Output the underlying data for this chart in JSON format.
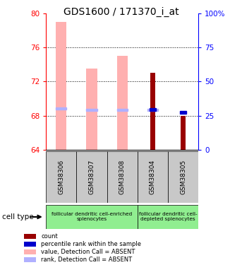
{
  "title": "GDS1600 / 171370_i_at",
  "samples": [
    "GSM38306",
    "GSM38307",
    "GSM38308",
    "GSM38304",
    "GSM38305"
  ],
  "ylim_left": [
    64,
    80
  ],
  "ylim_right": [
    0,
    100
  ],
  "yticks_left": [
    64,
    68,
    72,
    76,
    80
  ],
  "yticks_right": [
    0,
    25,
    50,
    75,
    100
  ],
  "ytick_labels_right": [
    "0",
    "25",
    "50",
    "75",
    "100%"
  ],
  "pink_bar_bottom": 64,
  "pink_bar_tops": [
    79.0,
    73.5,
    75.0,
    64.0,
    64.0
  ],
  "light_blue_y": [
    68.8,
    68.7,
    68.7,
    68.7,
    64.0
  ],
  "red_bar_tops": [
    64.0,
    64.0,
    64.0,
    73.0,
    68.0
  ],
  "blue_square_y": [
    64.0,
    64.0,
    64.0,
    68.7,
    68.4
  ],
  "has_red_bar": [
    false,
    false,
    false,
    true,
    true
  ],
  "has_blue_square": [
    false,
    false,
    false,
    true,
    true
  ],
  "has_light_blue": [
    true,
    true,
    true,
    true,
    false
  ],
  "has_pink_bar": [
    true,
    true,
    true,
    false,
    false
  ],
  "bar_width": 0.35,
  "pink_color": "#ffb0b0",
  "light_blue_color": "#b0b0ff",
  "red_color": "#990000",
  "blue_color": "#0000cc",
  "bg_color": "#ffffff",
  "label_area_color": "#c8c8c8",
  "green_color": "#90ee90",
  "cell_type_label": "cell type",
  "legend_labels": [
    "count",
    "percentile rank within the sample",
    "value, Detection Call = ABSENT",
    "rank, Detection Call = ABSENT"
  ],
  "legend_colors": [
    "#990000",
    "#0000cc",
    "#ffb0b0",
    "#b0b0ff"
  ]
}
